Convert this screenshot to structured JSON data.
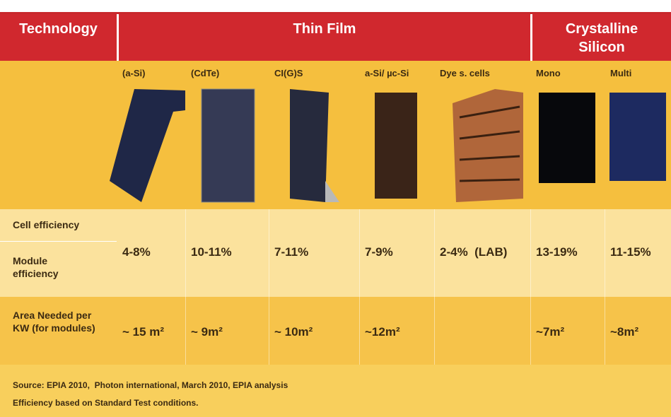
{
  "header": {
    "technology": "Technology",
    "thin_film": "Thin Film",
    "crystalline_silicon": "Crystalline Silicon"
  },
  "columns": [
    {
      "label": "(a-Si)",
      "efficiency": "4-8%",
      "area": "~ 15 m²"
    },
    {
      "label": "(CdTe)",
      "efficiency": "10-11%",
      "area": "~ 9m²"
    },
    {
      "label": "CI(G)S",
      "efficiency": "7-11%",
      "area": "~ 10m²"
    },
    {
      "label": "a-Si/ µc-Si",
      "efficiency": "7-9%",
      "area": "~12m²"
    },
    {
      "label": "Dye s. cells",
      "efficiency": "2-4%  (LAB)"
    },
    {
      "label": "Mono",
      "efficiency": "13-19%",
      "area": "~7m²"
    },
    {
      "label": "Multi",
      "efficiency": "11-15%",
      "area": "~8m²"
    }
  ],
  "row_labels": {
    "cell_efficiency": "Cell efficiency",
    "module_efficiency": "Module efficiency",
    "area_needed": "Area Needed per KW (for modules)"
  },
  "source": [
    "Source: EPIA 2010,  Photon international, March 2010, EPIA analysis",
    "Efficiency based on Standard Test conditions."
  ]
}
